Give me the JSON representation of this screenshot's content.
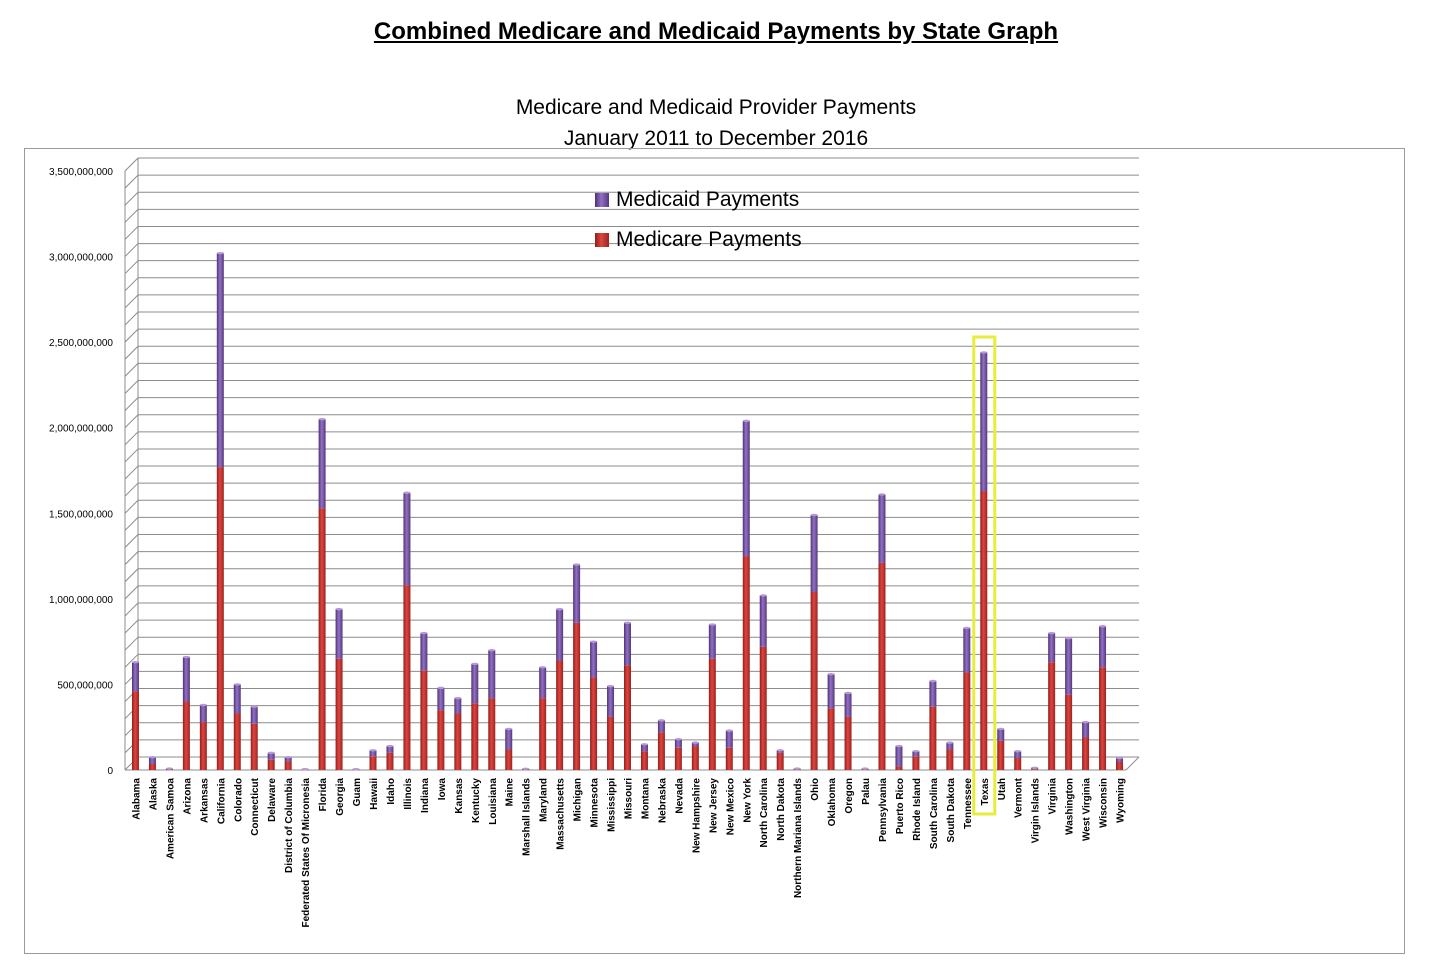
{
  "page": {
    "title": "Combined Medicare and Medicaid Payments by State Graph"
  },
  "chart_data": {
    "type": "bar",
    "stacked": true,
    "title": "Medicare and Medicaid Provider Payments",
    "subtitle": "January 2011 to December 2016",
    "xlabel": "",
    "ylabel": "",
    "ylim": [
      0,
      3500000000
    ],
    "yticks": [
      0,
      500000000,
      1000000000,
      1500000000,
      2000000000,
      2500000000,
      3000000000,
      3500000000
    ],
    "ytick_labels": [
      "0",
      "500,000,000",
      "1,000,000,000",
      "1,500,000,000",
      "2,000,000,000",
      "2,500,000,000",
      "3,000,000,000",
      "3,500,000,000"
    ],
    "grid": true,
    "legend_position": "top-center",
    "highlight": "Texas",
    "highlight_color": "#e8ec3a",
    "categories": [
      "Alabama",
      "Alaska",
      "American Samoa",
      "Arizona",
      "Arkansas",
      "California",
      "Colorado",
      "Connecticut",
      "Delaware",
      "District of Columbia",
      "Federated States Of Micronesia",
      "Florida",
      "Georgia",
      "Guam",
      "Hawaii",
      "Idaho",
      "Illinois",
      "Indiana",
      "Iowa",
      "Kansas",
      "Kentucky",
      "Louisiana",
      "Maine",
      "Marshall Islands",
      "Maryland",
      "Massachusetts",
      "Michigan",
      "Minnesota",
      "Mississippi",
      "Missouri",
      "Montana",
      "Nebraska",
      "Nevada",
      "New Hampshire",
      "New Jersey",
      "New Mexico",
      "New York",
      "North Carolina",
      "North Dakota",
      "Northern Mariana Islands",
      "Ohio",
      "Oklahoma",
      "Oregon",
      "Palau",
      "Pennsylvania",
      "Puerto Rico",
      "Rhode Island",
      "South Carolina",
      "South Dakota",
      "Tennessee",
      "Texas",
      "Utah",
      "Vermont",
      "Virgin Islands",
      "Virginia",
      "Washington",
      "West Virginia",
      "Wisconsin",
      "Wyoming"
    ],
    "series": [
      {
        "name": "Medicare Payments",
        "color": "#c0322e",
        "values": [
          460000000,
          35000000,
          3000000,
          400000000,
          280000000,
          1770000000,
          330000000,
          270000000,
          60000000,
          50000000,
          2000000,
          1530000000,
          650000000,
          2000000,
          80000000,
          100000000,
          1080000000,
          580000000,
          350000000,
          330000000,
          390000000,
          420000000,
          120000000,
          3000000,
          420000000,
          640000000,
          860000000,
          540000000,
          310000000,
          610000000,
          110000000,
          220000000,
          130000000,
          140000000,
          650000000,
          130000000,
          1250000000,
          720000000,
          100000000,
          3000000,
          1040000000,
          360000000,
          310000000,
          3000000,
          1210000000,
          20000000,
          80000000,
          370000000,
          120000000,
          570000000,
          1630000000,
          170000000,
          70000000,
          5000000,
          630000000,
          440000000,
          190000000,
          600000000,
          50000000
        ]
      },
      {
        "name": "Medicaid Payments",
        "color": "#7a52a8",
        "values": [
          170000000,
          40000000,
          5000000,
          260000000,
          100000000,
          1250000000,
          170000000,
          100000000,
          40000000,
          25000000,
          3000000,
          520000000,
          290000000,
          3000000,
          35000000,
          40000000,
          540000000,
          220000000,
          130000000,
          90000000,
          230000000,
          280000000,
          120000000,
          4000000,
          180000000,
          300000000,
          340000000,
          210000000,
          180000000,
          250000000,
          40000000,
          70000000,
          50000000,
          20000000,
          200000000,
          100000000,
          790000000,
          300000000,
          15000000,
          5000000,
          450000000,
          200000000,
          140000000,
          5000000,
          400000000,
          120000000,
          30000000,
          150000000,
          40000000,
          260000000,
          810000000,
          70000000,
          40000000,
          8000000,
          170000000,
          330000000,
          90000000,
          240000000,
          20000000
        ]
      }
    ]
  }
}
